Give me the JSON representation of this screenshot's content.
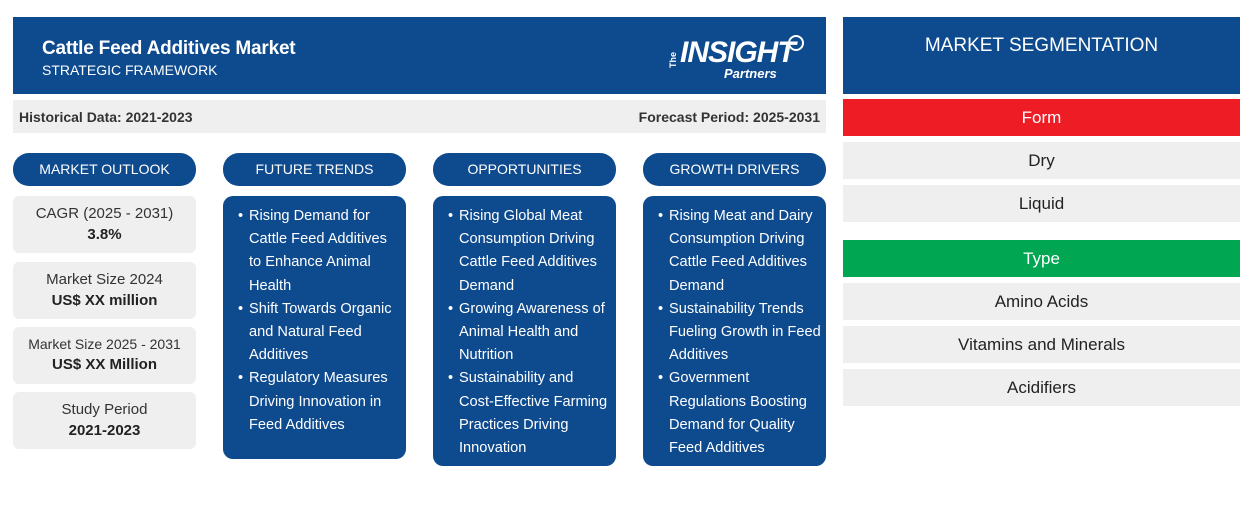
{
  "header": {
    "title": "Cattle Feed Additives Market",
    "subtitle": "STRATEGIC FRAMEWORK",
    "logo_the": "The",
    "logo_main": "INSIGHT",
    "logo_sub": "Partners"
  },
  "periods": {
    "historical": "Historical Data: 2021-2023",
    "forecast": "Forecast Period: 2025-2031"
  },
  "columns": {
    "outlook": "MARKET OUTLOOK",
    "trends": "FUTURE TRENDS",
    "opportunities": "OPPORTUNITIES",
    "drivers": "GROWTH DRIVERS"
  },
  "outlook": [
    {
      "label": "CAGR (2025 - 2031)",
      "value": "3.8%"
    },
    {
      "label": "Market Size 2024",
      "value": "US$ XX million"
    },
    {
      "label": "Market Size 2025 - 2031",
      "value": "US$ XX Million"
    },
    {
      "label": "Study Period",
      "value": "2021-2023"
    }
  ],
  "trends": [
    "Rising Demand for Cattle Feed Additives to Enhance Animal Health",
    "Shift Towards Organic and Natural Feed Additives",
    "Regulatory Measures Driving Innovation in Feed Additives"
  ],
  "opportunities": [
    "Rising Global Meat Consumption Driving Cattle Feed Additives Demand",
    "Growing Awareness of Animal Health and Nutrition",
    "Sustainability and Cost-Effective Farming Practices Driving Innovation"
  ],
  "drivers": [
    "Rising Meat and Dairy Consumption Driving Cattle Feed Additives Demand",
    "Sustainability Trends Fueling Growth in Feed Additives",
    "Government Regulations Boosting Demand for Quality Feed Additives"
  ],
  "segmentation": {
    "title": "MARKET SEGMENTATION",
    "form": {
      "label": "Form",
      "color": "#ee1c25",
      "items": [
        "Dry",
        "Liquid"
      ]
    },
    "type": {
      "label": "Type",
      "color": "#00a651",
      "items": [
        "Amino Acids",
        "Vitamins and Minerals",
        "Acidifiers"
      ]
    }
  },
  "colors": {
    "navy": "#0e4a8e",
    "panel": "#efefef"
  }
}
